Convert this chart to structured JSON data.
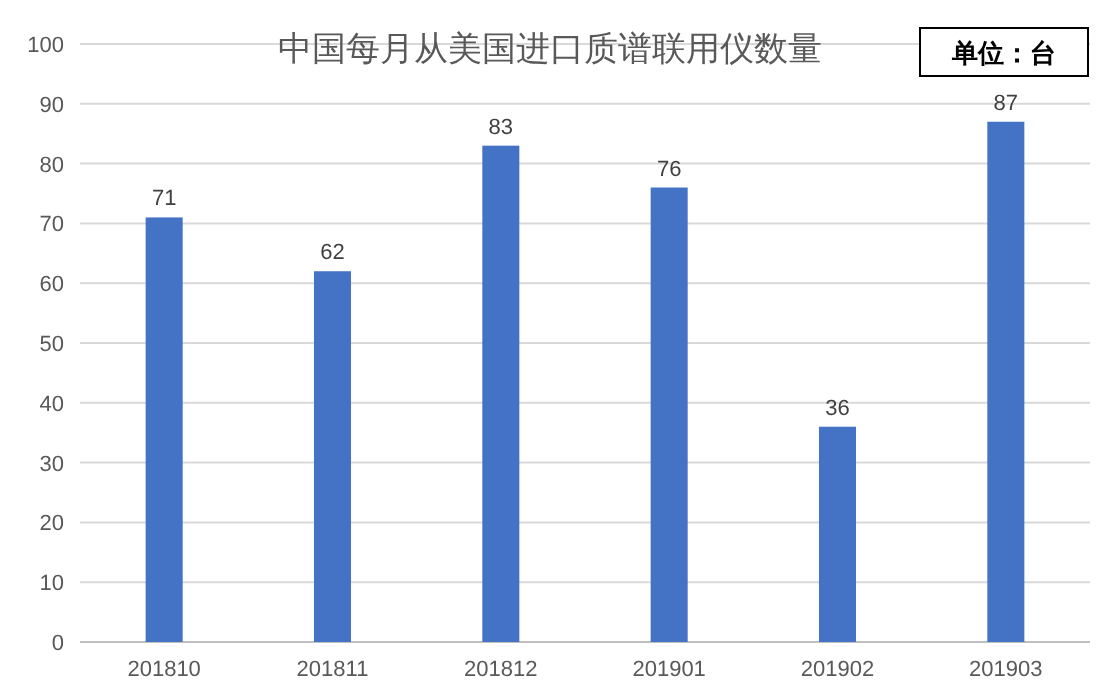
{
  "chart_data": {
    "type": "bar",
    "title": "中国每月从美国进口质谱联用仪数量",
    "annotations": [
      "单位：台"
    ],
    "categories": [
      "201810",
      "201811",
      "201812",
      "201901",
      "201902",
      "201903"
    ],
    "values": [
      71,
      62,
      83,
      76,
      36,
      87
    ],
    "color": "#4472c4",
    "ylim": [
      0,
      100
    ],
    "yticks": [
      0,
      10,
      20,
      30,
      40,
      50,
      60,
      70,
      80,
      90,
      100
    ],
    "grid": "y",
    "data_labels": true
  }
}
